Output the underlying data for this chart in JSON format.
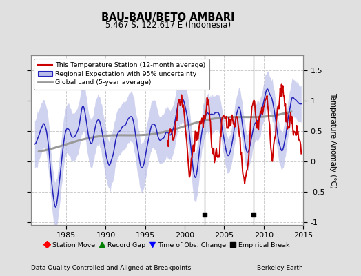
{
  "title": "BAU-BAU/BETO AMBARI",
  "subtitle": "5.467 S, 122.617 E (Indonesia)",
  "ylabel": "Temperature Anomaly (°C)",
  "xlabel_left": "Data Quality Controlled and Aligned at Breakpoints",
  "xlabel_right": "Berkeley Earth",
  "xlim": [
    1980.5,
    2015.0
  ],
  "ylim": [
    -1.05,
    1.75
  ],
  "yticks": [
    -1.0,
    -0.5,
    0.0,
    0.5,
    1.0,
    1.5
  ],
  "xticks": [
    1985,
    1990,
    1995,
    2000,
    2005,
    2010,
    2015
  ],
  "vertical_lines": [
    2002.5,
    2008.75
  ],
  "empirical_breaks": [
    2002.5,
    2008.75
  ],
  "bg_color": "#e0e0e0",
  "plot_bg_color": "#ffffff",
  "red_line_color": "#cc0000",
  "blue_line_color": "#2222bb",
  "blue_fill_color": "#b8bce8",
  "gray_line_color": "#999999",
  "grid_color": "#cccccc"
}
